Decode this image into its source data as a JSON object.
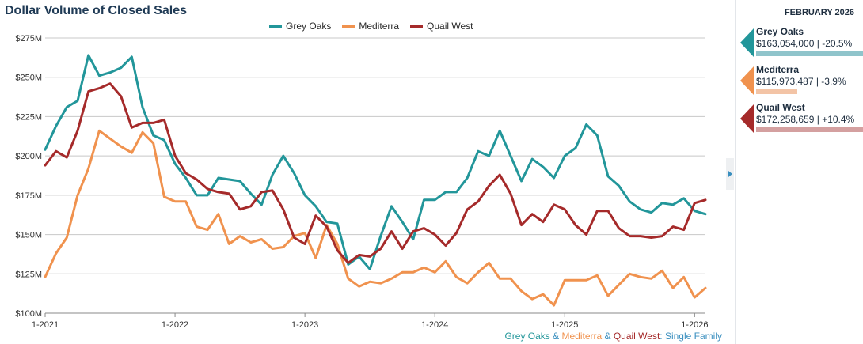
{
  "chart_data": {
    "type": "line",
    "title": "Dollar Volume of Closed Sales",
    "ylim": [
      100,
      275
    ],
    "y_ticks": [
      {
        "value": 100,
        "label": "$100M"
      },
      {
        "value": 125,
        "label": "$125M"
      },
      {
        "value": 150,
        "label": "$150M"
      },
      {
        "value": 175,
        "label": "$175M"
      },
      {
        "value": 200,
        "label": "$200M"
      },
      {
        "value": 225,
        "label": "$225M"
      },
      {
        "value": 250,
        "label": "$250M"
      },
      {
        "value": 275,
        "label": "$275M"
      }
    ],
    "x_ticks": [
      {
        "month": "2021-01",
        "label": "1-2021"
      },
      {
        "month": "2022-01",
        "label": "1-2022"
      },
      {
        "month": "2023-01",
        "label": "1-2023"
      },
      {
        "month": "2024-01",
        "label": "1-2024"
      },
      {
        "month": "2025-01",
        "label": "1-2025"
      },
      {
        "month": "2026-01",
        "label": "1-2026"
      }
    ],
    "x_start": "2021-01",
    "x_end": "2026-02",
    "grid": true,
    "legend_position": "top-center",
    "series": [
      {
        "name": "Grey Oaks",
        "color": "#22969a",
        "values": [
          204,
          219,
          231,
          235,
          264,
          251,
          253,
          256,
          263,
          231,
          213,
          210,
          195,
          186,
          175,
          175,
          186,
          185,
          184,
          176,
          169,
          188,
          200,
          189,
          175,
          168,
          158,
          157,
          131,
          136,
          128,
          149,
          168,
          158,
          147,
          172,
          172,
          177,
          177,
          186,
          203,
          200,
          216,
          200,
          184,
          198,
          193,
          186,
          200,
          205,
          220,
          213,
          187,
          181,
          171,
          166,
          164,
          170,
          169,
          173,
          165,
          163
        ],
        "line_width": 3
      },
      {
        "name": "Mediterra",
        "color": "#f0924e",
        "values": [
          123,
          138,
          148,
          175,
          192,
          216,
          211,
          206,
          202,
          215,
          208,
          174,
          171,
          171,
          155,
          153,
          163,
          144,
          149,
          145,
          147,
          141,
          142,
          149,
          151,
          135,
          156,
          144,
          122,
          117,
          120,
          119,
          122,
          126,
          126,
          129,
          126,
          133,
          123,
          119,
          126,
          132,
          122,
          122,
          114,
          109,
          112,
          105,
          121,
          121,
          121,
          124,
          111,
          118,
          125,
          123,
          122,
          127,
          116,
          123,
          110,
          116
        ],
        "line_width": 3
      },
      {
        "name": "Quail West",
        "color": "#a52a2a",
        "values": [
          194,
          203,
          199,
          216,
          241,
          243,
          246,
          238,
          218,
          221,
          221,
          223,
          200,
          189,
          185,
          179,
          177,
          176,
          166,
          168,
          177,
          178,
          166,
          148,
          144,
          162,
          155,
          140,
          132,
          137,
          136,
          141,
          152,
          141,
          152,
          154,
          150,
          143,
          151,
          166,
          171,
          181,
          188,
          176,
          156,
          163,
          158,
          169,
          166,
          156,
          150,
          165,
          165,
          154,
          149,
          149,
          148,
          149,
          155,
          153,
          170,
          172
        ],
        "line_width": 3
      }
    ]
  },
  "legend": {
    "items": [
      {
        "name": "Grey Oaks",
        "color": "#22969a"
      },
      {
        "name": "Mediterra",
        "color": "#f0924e"
      },
      {
        "name": "Quail West",
        "color": "#a52a2a"
      }
    ]
  },
  "footer": {
    "grey_oaks": "Grey Oaks",
    "amp1": " & ",
    "mediterra": "Mediterra",
    "amp2": " & ",
    "quail_west": "Quail West",
    "suffix": ": Single Family",
    "colors": {
      "grey_oaks": "#22969a",
      "mediterra": "#f0924e",
      "quail_west": "#a52a2a",
      "text": "#3a8fbf"
    }
  },
  "side_panel": {
    "date": "FEBRUARY 2026",
    "cards": [
      {
        "name": "Grey Oaks",
        "stat": "$163,054,000 | -20.5%",
        "arrow_color": "#22969a",
        "bar_color": "#8fc4cb",
        "bar_fraction": 1.0
      },
      {
        "name": "Mediterra",
        "stat": "$115,973,487 | -3.9%",
        "arrow_color": "#f0924e",
        "bar_color": "#f3c4a6",
        "bar_fraction": 0.38
      },
      {
        "name": "Quail West",
        "stat": "$172,258,659 | +10.4%",
        "arrow_color": "#a52a2a",
        "bar_color": "#d4a0a0",
        "bar_fraction": 1.0
      }
    ]
  }
}
